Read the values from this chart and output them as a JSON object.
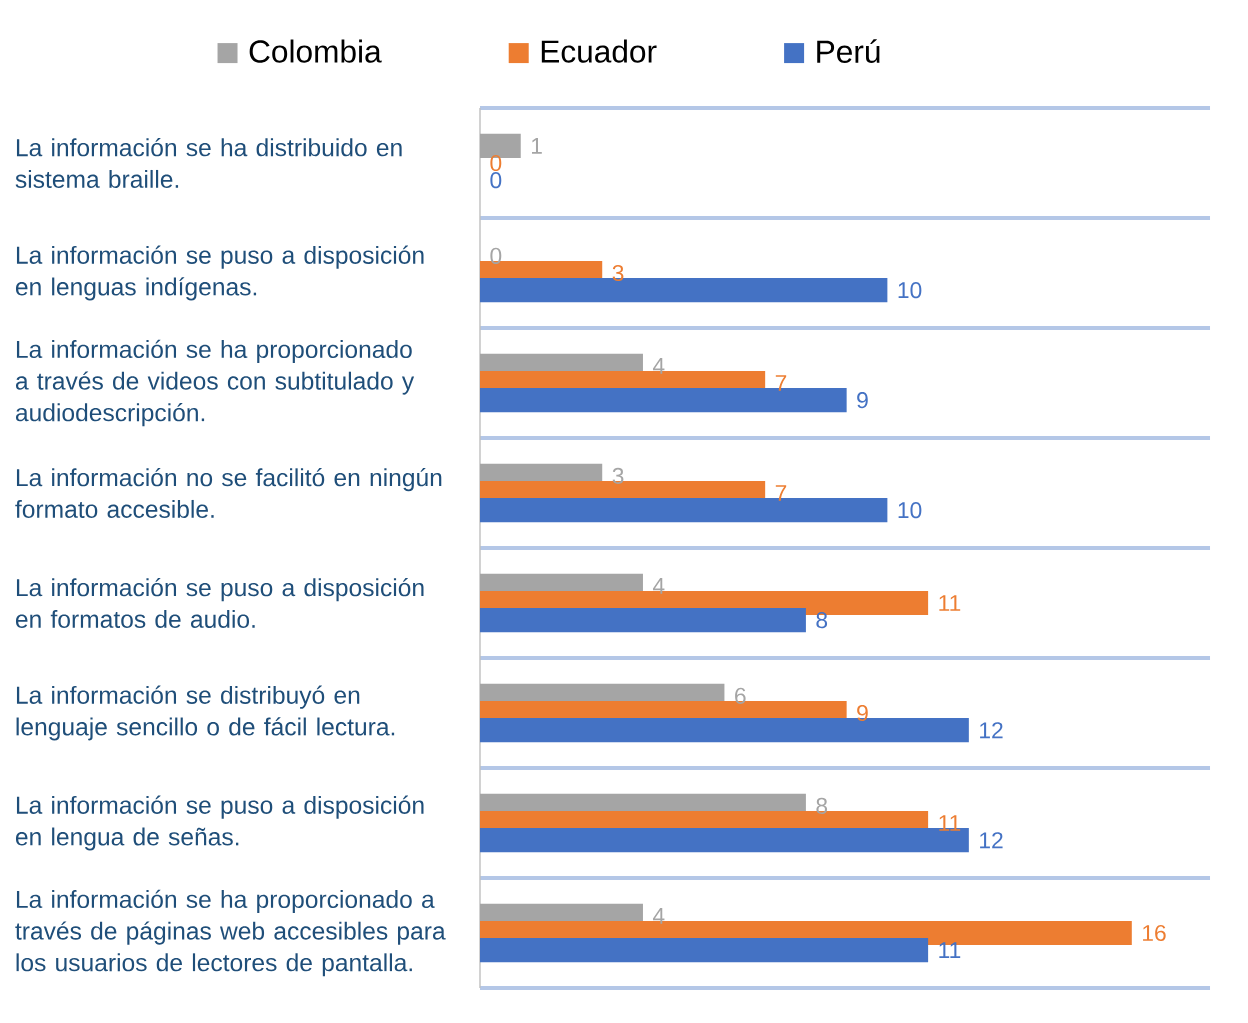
{
  "chart_data": {
    "type": "bar",
    "orientation": "horizontal",
    "data_labels": true,
    "grid": "y",
    "legend": "top",
    "categories": [
      "La información se ha distribuido en sistema braille.",
      "La información se puso a disposición en lenguas indígenas.",
      "La información se ha proporcionado a través de videos con subtitulado y audiodescripción.",
      "La información no se facilitó en ningún formato accesible.",
      "La información se puso a disposición en formatos de audio.",
      "La información se distribuyó en lenguaje sencillo o de fácil lectura.",
      "La información se puso a disposición en lengua de señas.",
      "La información se ha proporcionado a través de páginas web accesibles para los usuarios de lectores de pantalla."
    ],
    "series": [
      {
        "name": "Colombia",
        "color": "#a5a5a5",
        "values": [
          1,
          0,
          4,
          3,
          4,
          6,
          8,
          4
        ]
      },
      {
        "name": "Ecuador",
        "color": "#ed7d31",
        "values": [
          0,
          3,
          7,
          7,
          11,
          9,
          11,
          16
        ]
      },
      {
        "name": "Perú",
        "color": "#4472c4",
        "values": [
          0,
          10,
          9,
          10,
          8,
          12,
          12,
          11
        ]
      }
    ]
  }
}
